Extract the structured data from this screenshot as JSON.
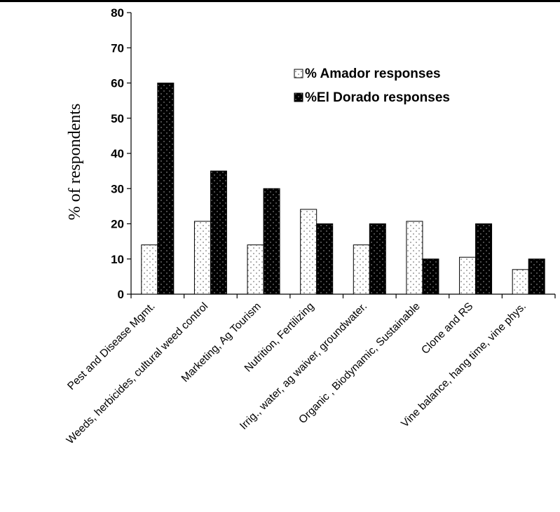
{
  "chart_data": {
    "type": "bar",
    "categories": [
      "Pest and Disease Mgmt.",
      "Weeds, herbicides, cultural weed control",
      "Marketing, Ag Tourism",
      "Nutrition, Fertilizing",
      "Irrig., water, ag waiver, groundwater.",
      "Organic , Biodynamic, Sustainable",
      "Clone and RS",
      "Vine balance, hang time, vine phys."
    ],
    "series": [
      {
        "name": "% Amador responses",
        "values": [
          14,
          20.7,
          14,
          24.1,
          14,
          20.7,
          10.5,
          7
        ],
        "color": "#ffffff",
        "pattern": "dotted-light"
      },
      {
        "name": "%El Dorado responses",
        "values": [
          60,
          35,
          30,
          20,
          20,
          10,
          20,
          10
        ],
        "color": "#000000",
        "pattern": "dotted-dark"
      }
    ],
    "ylabel": "% of respondents",
    "xlabel": "",
    "ylim": [
      0,
      80
    ],
    "yticks": [
      0,
      10,
      20,
      30,
      40,
      50,
      60,
      70,
      80
    ],
    "grid": false,
    "legend_position": "top-right"
  }
}
